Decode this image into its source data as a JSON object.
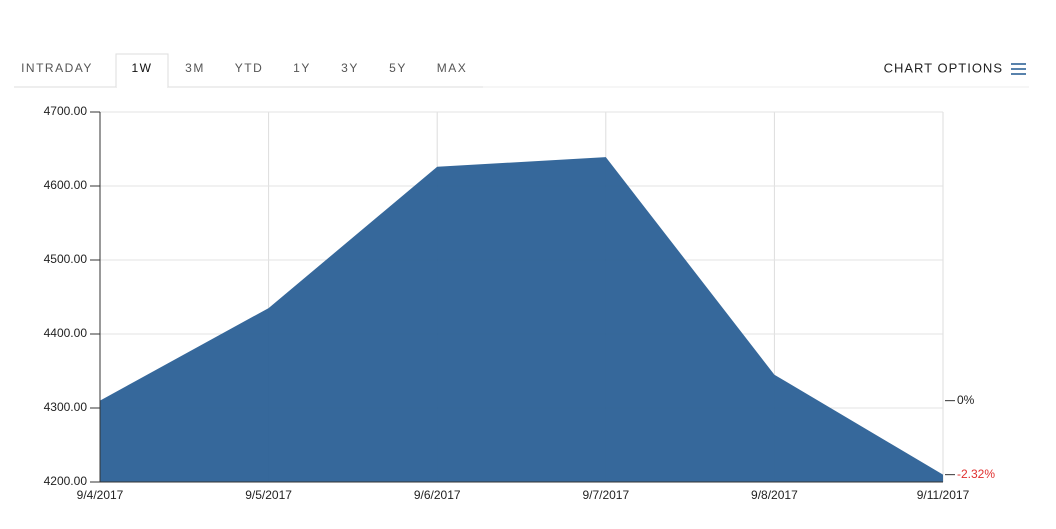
{
  "chart_data": {
    "type": "area",
    "tabs": [
      {
        "label": "INTRADAY",
        "active": false
      },
      {
        "label": "1W",
        "active": true
      },
      {
        "label": "3M",
        "active": false
      },
      {
        "label": "YTD",
        "active": false
      },
      {
        "label": "1Y",
        "active": false
      },
      {
        "label": "3Y",
        "active": false
      },
      {
        "label": "5Y",
        "active": false
      },
      {
        "label": "MAX",
        "active": false
      }
    ],
    "chart_options": "CHART OPTIONS",
    "categories": [
      "9/4/2017",
      "9/5/2017",
      "9/6/2017",
      "9/7/2017",
      "9/8/2017",
      "9/11/2017"
    ],
    "values": [
      4310,
      4435,
      4626,
      4639,
      4345,
      4210
    ],
    "color": "#2f6398",
    "ylim": [
      4200,
      4700
    ],
    "yticks": [
      {
        "value": 4200,
        "label": "4200.00"
      },
      {
        "value": 4300,
        "label": "4300.00"
      },
      {
        "value": 4400,
        "label": "4400.00"
      },
      {
        "value": 4500,
        "label": "4500.00"
      },
      {
        "value": 4600,
        "label": "4600.00"
      },
      {
        "value": 4700,
        "label": "4700.00"
      }
    ],
    "y2lim": [
      -2.55,
      9.05
    ],
    "y2ticks": [
      {
        "value": 0,
        "label": "0%"
      },
      {
        "value": -2.32,
        "label": "-2.32%"
      }
    ],
    "negative_color": "#e0302f",
    "grid": true
  }
}
